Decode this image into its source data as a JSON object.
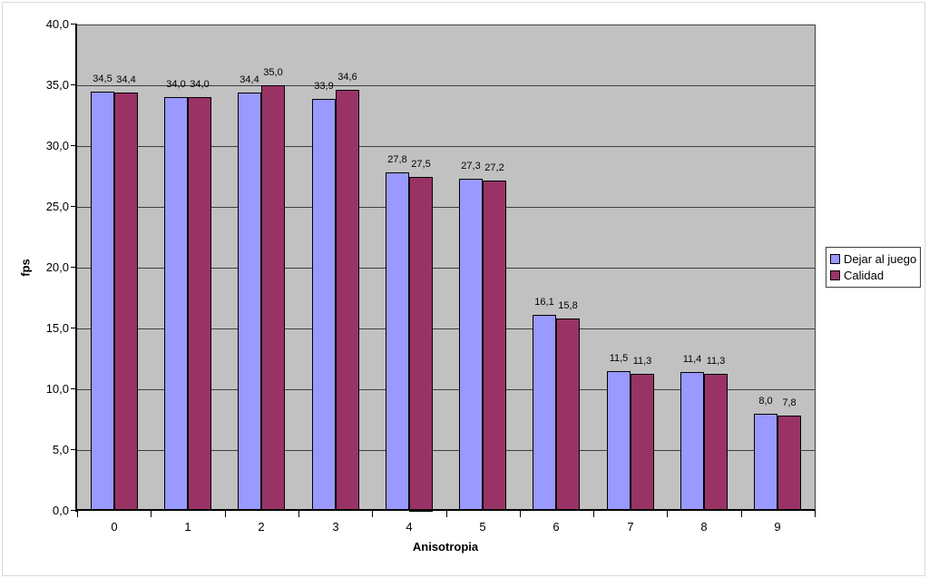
{
  "chart_data": {
    "type": "bar",
    "title": "",
    "xlabel": "Anisotropia",
    "ylabel": "fps",
    "categories": [
      "0",
      "1",
      "2",
      "3",
      "4",
      "5",
      "6",
      "7",
      "8",
      "9"
    ],
    "series": [
      {
        "name": "Dejar al juego",
        "color": "#9999ff",
        "values": [
          34.5,
          34.0,
          34.4,
          33.9,
          27.8,
          27.3,
          16.1,
          11.5,
          11.4,
          8.0
        ],
        "labels": [
          "34,5",
          "34,0",
          "34,4",
          "33,9",
          "27,8",
          "27,3",
          "16,1",
          "11,5",
          "11,4",
          "8,0"
        ]
      },
      {
        "name": "Calidad",
        "color": "#993366",
        "values": [
          34.4,
          34.0,
          35.0,
          34.6,
          27.5,
          27.2,
          15.8,
          11.3,
          11.3,
          7.8
        ],
        "labels": [
          "34,4",
          "34,0",
          "35,0",
          "34,6",
          "27,5",
          "27,2",
          "15,8",
          "11,3",
          "11,3",
          "7,8"
        ]
      }
    ],
    "ylim": [
      0,
      40
    ],
    "ytick_step": 5,
    "ytick_labels": [
      "0,0",
      "5,0",
      "10,0",
      "15,0",
      "20,0",
      "25,0",
      "30,0",
      "35,0",
      "40,0"
    ],
    "decimal_separator": ",",
    "grid": true,
    "legend_position": "right",
    "plot_bg_color": "#c1c1c1",
    "gridline_color": "#3f3f3f"
  }
}
